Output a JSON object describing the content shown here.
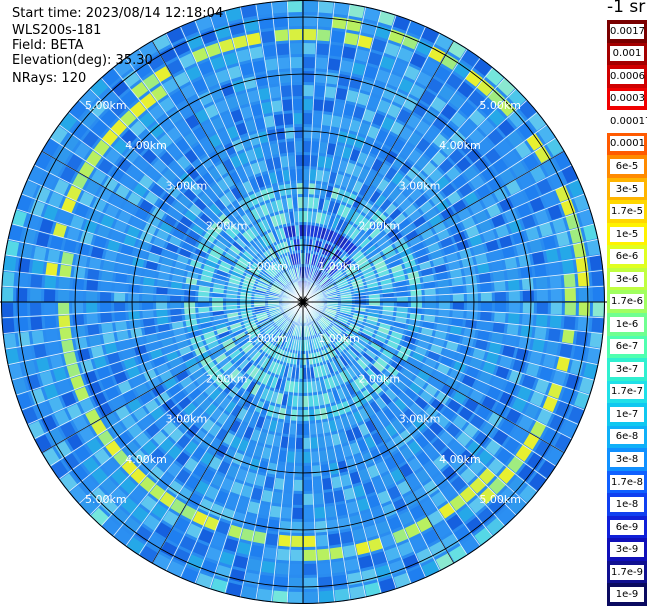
{
  "info": {
    "start_time": "Start time: 2023/08/14 12:18:04",
    "instrument": "WLS200s-181",
    "field": "Field: BETA",
    "elevation": "Elevation(deg): 35.30",
    "nrays": "NRays: 120"
  },
  "colorbar": {
    "unit_label": "-1 sr",
    "segments": [
      {
        "color": "#7a0000",
        "label": "0.0017"
      },
      {
        "color": "#a40000",
        "label": "0.001"
      },
      {
        "color": "#cf0000",
        "label": "0.0006"
      },
      {
        "color": "#f00000",
        "label": "0.0003"
      },
      {
        "color": "#ffffff",
        "label": "0.00017"
      },
      {
        "color": "#ff5a00",
        "label": "0.0001"
      },
      {
        "color": "#ff8a00",
        "label": "6e-5"
      },
      {
        "color": "#ffb400",
        "label": "3e-5"
      },
      {
        "color": "#ffd700",
        "label": "1.7e-5"
      },
      {
        "color": "#fff200",
        "label": "1e-5"
      },
      {
        "color": "#e0ff20",
        "label": "6e-6"
      },
      {
        "color": "#c0ff40",
        "label": "3e-6"
      },
      {
        "color": "#a0ff60",
        "label": "1.7e-6"
      },
      {
        "color": "#70ff90",
        "label": "1e-6"
      },
      {
        "color": "#50ffb0",
        "label": "6e-7"
      },
      {
        "color": "#30f0d0",
        "label": "3e-7"
      },
      {
        "color": "#20e0e8",
        "label": "1.7e-7"
      },
      {
        "color": "#10c8f0",
        "label": "1e-7"
      },
      {
        "color": "#10b0f8",
        "label": "6e-8"
      },
      {
        "color": "#1090ff",
        "label": "3e-8"
      },
      {
        "color": "#1060ff",
        "label": "1.7e-8"
      },
      {
        "color": "#1040f0",
        "label": "1e-8"
      },
      {
        "color": "#1020d8",
        "label": "6e-9"
      },
      {
        "color": "#1010b8",
        "label": "3e-9"
      },
      {
        "color": "#101090",
        "label": "1.7e-9"
      },
      {
        "color": "#0a0a60",
        "label": "1e-9"
      }
    ]
  },
  "chart_data": {
    "type": "heatmap",
    "projection": "polar (PPI scan)",
    "field": "BETA",
    "unit": "-1 sr",
    "scale": "log",
    "rays": 120,
    "max_range_km": 5.3,
    "range_rings_km": [
      1,
      2,
      3,
      4,
      5
    ],
    "ring_labels": [
      {
        "text": "1.00km",
        "km": 1.0
      },
      {
        "text": "2.00km",
        "km": 2.0
      },
      {
        "text": "3.00km",
        "km": 3.0
      },
      {
        "text": "4.00km",
        "km": 4.0
      },
      {
        "text": "5.00km",
        "km": 5.0
      }
    ],
    "azimuth_lines_deg": [
      0,
      30,
      60,
      90,
      120,
      150,
      180,
      210,
      240,
      270,
      300,
      330
    ],
    "features": [
      {
        "note": "low backscatter (~1e-8 to 3e-8) near center toward north-northeast"
      },
      {
        "note": "high backscatter ring (~1e-6 to 1e-5) between 3.5 and 5 km"
      }
    ]
  }
}
